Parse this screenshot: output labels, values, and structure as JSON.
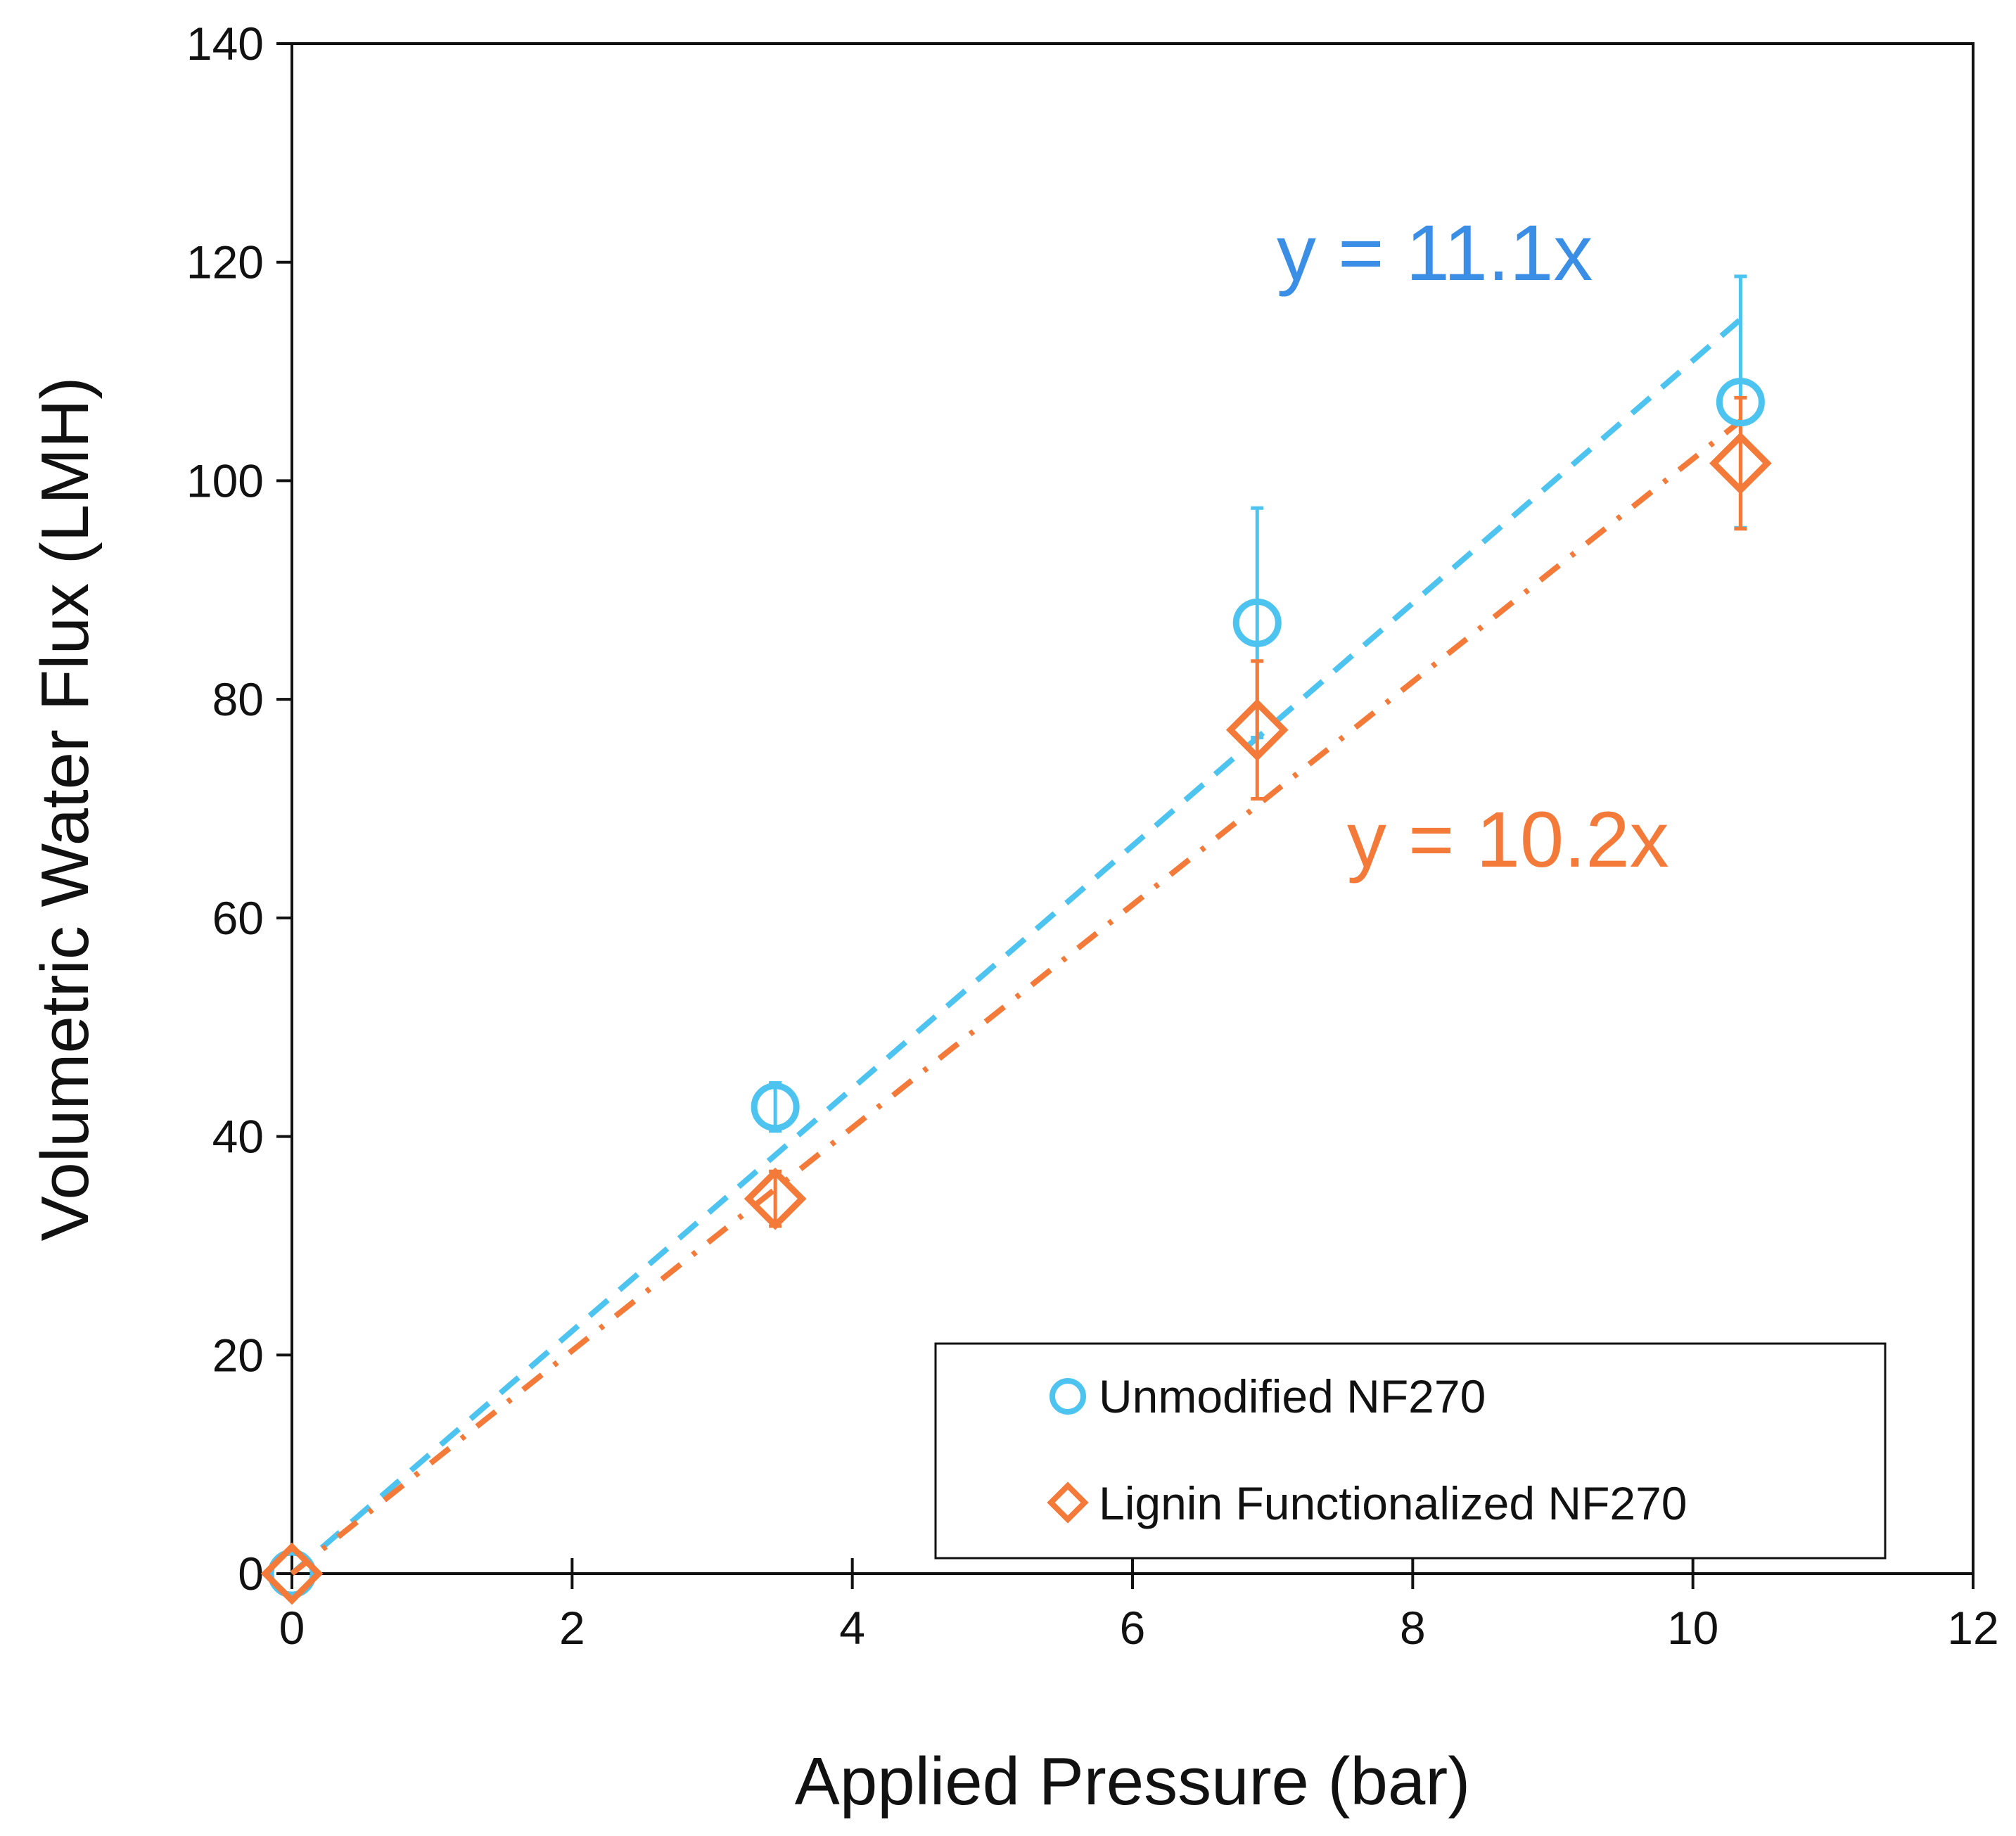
{
  "chart_data": {
    "type": "scatter",
    "title": "",
    "xlabel": "Applied Pressure (bar)",
    "ylabel": "Volumetric Water Flux (LMH)",
    "xlim": [
      0,
      12
    ],
    "ylim": [
      0,
      140
    ],
    "xticks": [
      0,
      2,
      4,
      6,
      8,
      10,
      12
    ],
    "yticks": [
      0,
      20,
      40,
      60,
      80,
      100,
      120,
      140
    ],
    "grid": false,
    "legend_position": "bottom-right",
    "series": [
      {
        "name": "Unmodified NF270",
        "marker": "circle",
        "color": "#4dc3f0",
        "x": [
          0,
          3.45,
          6.89,
          10.34
        ],
        "y": [
          0,
          42.7,
          87,
          107.2
        ],
        "err": [
          0,
          2.2,
          10.5,
          11.5
        ],
        "fit": {
          "slope": 11.1,
          "label": "y = 11.1x",
          "x_end": 10.34,
          "dash": "dashed",
          "label_color": "#3a8ee6"
        }
      },
      {
        "name": "Lignin Functionalized NF270",
        "marker": "diamond",
        "color": "#f47a3a",
        "x": [
          0,
          3.45,
          6.89,
          10.34
        ],
        "y": [
          0,
          34.3,
          77.2,
          101.6
        ],
        "err": [
          0,
          2.5,
          6.3,
          6.0
        ],
        "fit": {
          "slope": 10.2,
          "label": "y = 10.2x",
          "x_end": 10.34,
          "dash": "dash-dot",
          "label_color": "#f47a3a"
        }
      }
    ]
  }
}
